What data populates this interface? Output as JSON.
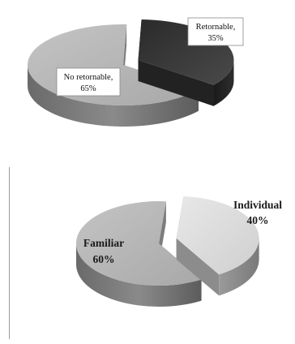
{
  "chart_data": [
    {
      "type": "pie",
      "style": "3d-exploded",
      "categories": [
        "Retornable",
        "No retornable"
      ],
      "values": [
        35,
        65
      ],
      "labels": [
        {
          "name": "Retornable,",
          "value": "35%"
        },
        {
          "name": "No retornable,",
          "value": "65%"
        }
      ],
      "colors": [
        "#3c3c3c",
        "#b8b8b8"
      ]
    },
    {
      "type": "pie",
      "style": "3d-exploded",
      "categories": [
        "Individual",
        "Familiar"
      ],
      "values": [
        40,
        60
      ],
      "labels": [
        {
          "name": "Individual",
          "value": "40%"
        },
        {
          "name": "Familiar",
          "value": "60%"
        }
      ],
      "colors": [
        "#dcdcdc",
        "#b8b8b8"
      ]
    }
  ]
}
